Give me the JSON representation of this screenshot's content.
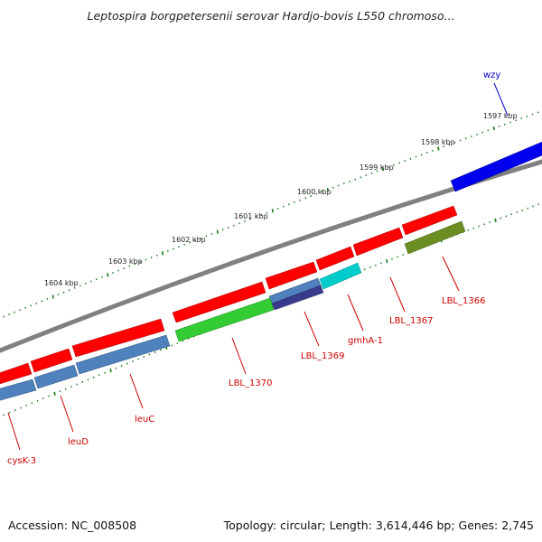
{
  "header": {
    "title": "Leptospira borgpetersenii serovar Hardjo-bovis L550 chromoso..."
  },
  "footer": {
    "accession": "Accession: NC_008508",
    "summary": "Topology: circular; Length: 3,614,446 bp; Genes: 2,745"
  },
  "colors": {
    "backbone": "#808080",
    "gene_red": "#ff0000",
    "gene_blue": "#4f81bd",
    "gene_green": "#33cc33",
    "gene_cyan": "#00cccc",
    "gene_navy": "#3a3a8c",
    "gene_olive": "#6b8e23",
    "gene_deep_blue": "#0000ee",
    "label_red": "#cc0000",
    "label_blue": "#0000cc",
    "tick_green": "#1a7a1a"
  },
  "kbp_labels": [
    "1597 kbp",
    "1598 kbp",
    "1599 kbp",
    "1600 kbp",
    "1601 kbp",
    "1602 kbp",
    "1603 kbp",
    "1604 kbp"
  ],
  "gene_labels": {
    "wzy": "wzy",
    "lbl_1366": "LBL_1366",
    "lbl_1367": "LBL_1367",
    "gmha_1": "gmhA-1",
    "lbl_1369": "LBL_1369",
    "lbl_1370": "LBL_1370",
    "leuc": "leuC",
    "leud": "leuD",
    "cysk_3": "cysK-3"
  }
}
